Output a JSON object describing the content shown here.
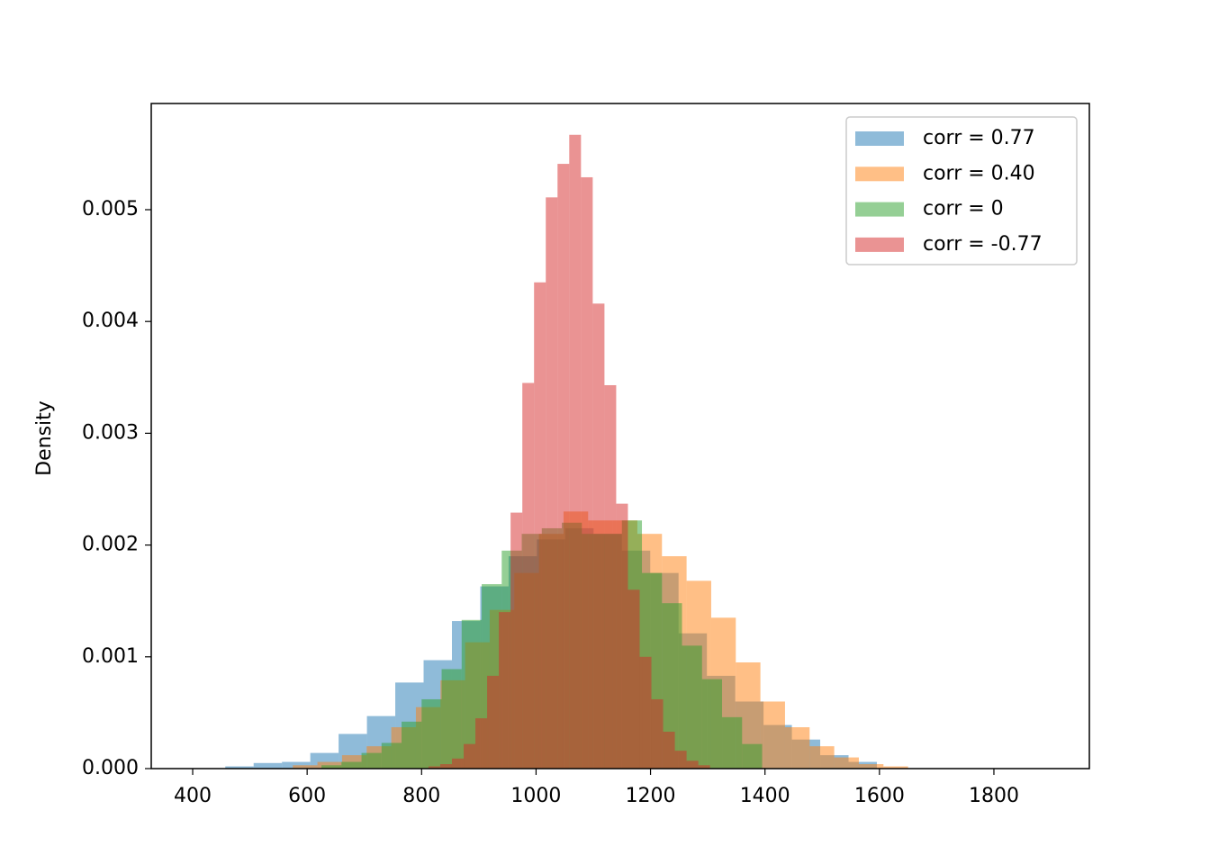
{
  "chart_data": {
    "type": "histogram",
    "y_label": "Density",
    "xlim": [
      327.6,
      1966.8
    ],
    "ylim": [
      0,
      0.00595
    ],
    "xticks": [
      400,
      600,
      800,
      1000,
      1200,
      1400,
      1600,
      1800
    ],
    "yticks": [
      {
        "value": 0,
        "label": "0.000"
      },
      0.001,
      0.002,
      0.003,
      0.004,
      0.005
    ],
    "alpha": 0.5,
    "legend": "upper right",
    "series": [
      {
        "name": "corr = 0.77",
        "color": "#1f77b4",
        "bins": [
          457,
          506.5,
          556,
          605.5,
          655,
          704.5,
          754,
          803.5,
          853,
          902.5,
          952,
          1001.5,
          1051,
          1100.5,
          1150,
          1199.5,
          1249,
          1298.5,
          1348,
          1397.5,
          1447,
          1496.5,
          1546,
          1595.5
        ],
        "values": [
          2e-05,
          5e-05,
          6e-05,
          0.00014,
          0.00031,
          0.00047,
          0.00077,
          0.00097,
          0.00132,
          0.00163,
          0.0019,
          0.00205,
          0.00215,
          0.0021,
          0.00195,
          0.00175,
          0.00121,
          0.00083,
          0.0006,
          0.00039,
          0.00026,
          0.00012,
          6e-05
        ]
      },
      {
        "name": "corr = 0.40",
        "color": "#ff7f0e",
        "bins": [
          575,
          618,
          661,
          704,
          747,
          790,
          833,
          876,
          919,
          962,
          1005,
          1048,
          1091,
          1134,
          1177,
          1220,
          1263,
          1306,
          1349,
          1392,
          1435,
          1478,
          1521,
          1564,
          1607,
          1650
        ],
        "values": [
          3e-05,
          6e-05,
          0.00012,
          0.0002,
          0.00037,
          0.00055,
          0.00079,
          0.00113,
          0.00142,
          0.00175,
          0.0021,
          0.0023,
          0.00222,
          0.00222,
          0.0021,
          0.0019,
          0.00168,
          0.00135,
          0.00095,
          0.0006,
          0.00037,
          0.0002,
          0.0001,
          4e-05,
          2e-05
        ]
      },
      {
        "name": "corr = 0",
        "color": "#2ca02c",
        "bins": [
          625,
          660,
          695,
          730,
          765,
          800,
          835,
          870,
          905,
          940,
          975,
          1010,
          1045,
          1080,
          1115,
          1150,
          1185,
          1220,
          1255,
          1290,
          1325,
          1360,
          1395
        ],
        "values": [
          3e-05,
          6e-05,
          0.00014,
          0.00023,
          0.00042,
          0.00062,
          0.00089,
          0.00133,
          0.00165,
          0.00195,
          0.0021,
          0.00215,
          0.0022,
          0.0021,
          0.0021,
          0.00222,
          0.00175,
          0.00148,
          0.0011,
          0.0008,
          0.00046,
          0.00022
        ]
      },
      {
        "name": "corr = -0.77",
        "color": "#d62728",
        "bins": [
          812,
          832.5,
          853,
          873.5,
          894,
          914.5,
          935,
          955.5,
          976,
          996.5,
          1017,
          1037.5,
          1058,
          1078.5,
          1099,
          1119.5,
          1140,
          1160.5,
          1181,
          1201.5,
          1222,
          1242.5,
          1263,
          1283.5,
          1304
        ],
        "values": [
          2e-05,
          4e-05,
          9e-05,
          0.00022,
          0.00045,
          0.00083,
          0.0014,
          0.00229,
          0.00345,
          0.00435,
          0.00511,
          0.00541,
          0.00567,
          0.00529,
          0.00416,
          0.00343,
          0.00237,
          0.0016,
          0.001,
          0.00062,
          0.00033,
          0.00016,
          7e-05,
          3e-05
        ]
      }
    ]
  }
}
